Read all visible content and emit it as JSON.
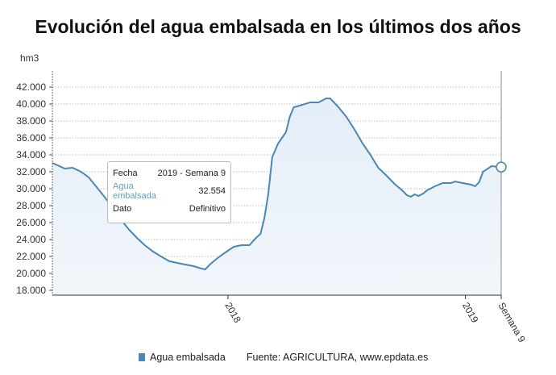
{
  "chart_data": {
    "type": "area",
    "title": "Evolución del agua embalsada en los últimos dos años",
    "ylabel": "hm3",
    "ylim": [
      17000,
      44000
    ],
    "yticks": [
      "18.000",
      "20.000",
      "22.000",
      "24.000",
      "26.000",
      "28.000",
      "30.000",
      "32.000",
      "34.000",
      "36.000",
      "38.000",
      "40.000",
      "42.000"
    ],
    "ytick_values": [
      18000,
      20000,
      22000,
      24000,
      26000,
      28000,
      30000,
      32000,
      34000,
      36000,
      38000,
      40000,
      42000
    ],
    "xticks": [
      {
        "date": "2018-01-01",
        "label": "2018"
      },
      {
        "date": "2019-01-01",
        "label": "2019"
      },
      {
        "date": "2019-02-25",
        "label": "Semana 9"
      }
    ],
    "xlim": [
      "2017-04-06",
      "2019-02-25"
    ],
    "grid": true,
    "legend": "bottom",
    "color": "#4a86b8",
    "series": [
      {
        "name": "Agua embalsada",
        "points": [
          [
            "2017-04-06",
            33050
          ],
          [
            "2017-04-25",
            32380
          ],
          [
            "2017-05-07",
            32476
          ],
          [
            "2017-05-20",
            32000
          ],
          [
            "2017-06-01",
            31333
          ],
          [
            "2017-06-13",
            30190
          ],
          [
            "2017-06-26",
            28950
          ],
          [
            "2017-07-08",
            27710
          ],
          [
            "2017-07-20",
            26380
          ],
          [
            "2017-08-02",
            25140
          ],
          [
            "2017-08-14",
            24190
          ],
          [
            "2017-08-26",
            23330
          ],
          [
            "2017-09-08",
            22570
          ],
          [
            "2017-09-20",
            22000
          ],
          [
            "2017-10-03",
            21430
          ],
          [
            "2017-10-15",
            21240
          ],
          [
            "2017-10-27",
            21050
          ],
          [
            "2017-11-09",
            20860
          ],
          [
            "2017-11-21",
            20570
          ],
          [
            "2017-11-27",
            20480
          ],
          [
            "2017-12-04",
            21050
          ],
          [
            "2017-12-16",
            21810
          ],
          [
            "2017-12-28",
            22480
          ],
          [
            "2018-01-10",
            23140
          ],
          [
            "2018-01-22",
            23330
          ],
          [
            "2018-02-03",
            23330
          ],
          [
            "2018-02-13",
            24190
          ],
          [
            "2018-02-20",
            24670
          ],
          [
            "2018-02-26",
            26570
          ],
          [
            "2018-03-04",
            29430
          ],
          [
            "2018-03-10",
            33710
          ],
          [
            "2018-03-19",
            35330
          ],
          [
            "2018-03-31",
            36670
          ],
          [
            "2018-04-06",
            38480
          ],
          [
            "2018-04-12",
            39620
          ],
          [
            "2018-04-25",
            39900
          ],
          [
            "2018-05-07",
            40190
          ],
          [
            "2018-05-20",
            40190
          ],
          [
            "2018-06-01",
            40670
          ],
          [
            "2018-06-07",
            40670
          ],
          [
            "2018-06-20",
            39620
          ],
          [
            "2018-07-02",
            38480
          ],
          [
            "2018-07-14",
            37050
          ],
          [
            "2018-07-27",
            35330
          ],
          [
            "2018-08-08",
            34000
          ],
          [
            "2018-08-20",
            32480
          ],
          [
            "2018-09-02",
            31520
          ],
          [
            "2018-09-14",
            30570
          ],
          [
            "2018-09-27",
            29710
          ],
          [
            "2018-10-03",
            29240
          ],
          [
            "2018-10-09",
            29050
          ],
          [
            "2018-10-15",
            29330
          ],
          [
            "2018-10-21",
            29140
          ],
          [
            "2018-10-28",
            29430
          ],
          [
            "2018-11-03",
            29810
          ],
          [
            "2018-11-15",
            30290
          ],
          [
            "2018-11-27",
            30670
          ],
          [
            "2018-12-10",
            30670
          ],
          [
            "2018-12-16",
            30860
          ],
          [
            "2018-12-28",
            30670
          ],
          [
            "2019-01-10",
            30480
          ],
          [
            "2019-01-16",
            30290
          ],
          [
            "2019-01-22",
            30760
          ],
          [
            "2019-01-28",
            32000
          ],
          [
            "2019-02-10",
            32670
          ],
          [
            "2019-02-25",
            32554
          ]
        ]
      }
    ]
  },
  "tooltip": {
    "fecha_label": "Fecha",
    "fecha_value": "2019 - Semana 9",
    "agua_label": "Agua embalsada",
    "agua_value": "32.554",
    "dato_label": "Dato",
    "dato_value": "Definitivo"
  },
  "legend": {
    "series": "Agua embalsada",
    "source": "Fuente: AGRICULTURA, www.epdata.es"
  }
}
